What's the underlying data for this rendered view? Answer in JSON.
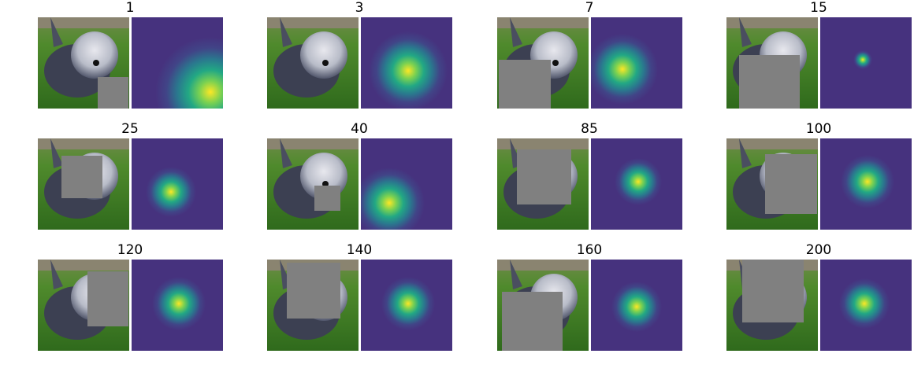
{
  "panels": [
    {
      "title": "1"
    },
    {
      "title": "3"
    },
    {
      "title": "7"
    },
    {
      "title": "15"
    },
    {
      "title": "25"
    },
    {
      "title": "40"
    },
    {
      "title": "85"
    },
    {
      "title": "100"
    },
    {
      "title": "120"
    },
    {
      "title": "140"
    },
    {
      "title": "160"
    },
    {
      "title": "200"
    }
  ]
}
